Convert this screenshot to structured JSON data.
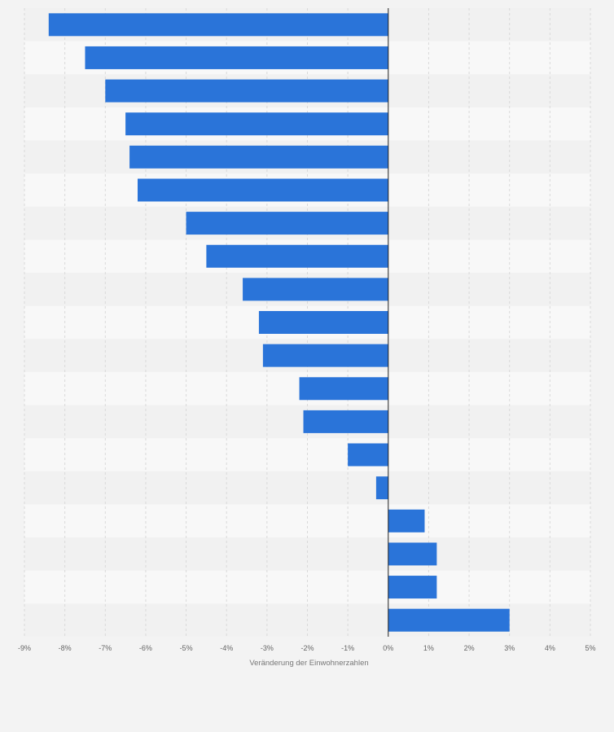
{
  "colors": {
    "page_background": "#f3f3f3",
    "band_light": "#f8f8f8",
    "band_dark": "#f1f1f1",
    "bar": "#2a74d9",
    "grid": "#d9d9d9",
    "zero_line": "#222222"
  },
  "chart_data": {
    "type": "bar",
    "orientation": "horizontal",
    "xlabel": "Veränderung der Einwohnerzahlen",
    "ylabel": "",
    "xlim": [
      -9,
      5
    ],
    "xticks": [
      -9,
      -8,
      -7,
      -6,
      -5,
      -4,
      -3,
      -2,
      -1,
      0,
      1,
      2,
      3,
      4,
      5
    ],
    "xtick_labels": [
      "-9%",
      "-8%",
      "-7%",
      "-6%",
      "-5%",
      "-4%",
      "-3%",
      "-2%",
      "-1%",
      "0%",
      "1%",
      "2%",
      "3%",
      "4%",
      "5%"
    ],
    "grid": true,
    "category_labels_visible": false,
    "values": [
      -8.4,
      -7.5,
      -7.0,
      -6.5,
      -6.4,
      -6.2,
      -5.0,
      -4.5,
      -3.6,
      -3.2,
      -3.1,
      -2.2,
      -2.1,
      -1.0,
      -0.3,
      0.9,
      1.2,
      1.2,
      3.0
    ]
  }
}
